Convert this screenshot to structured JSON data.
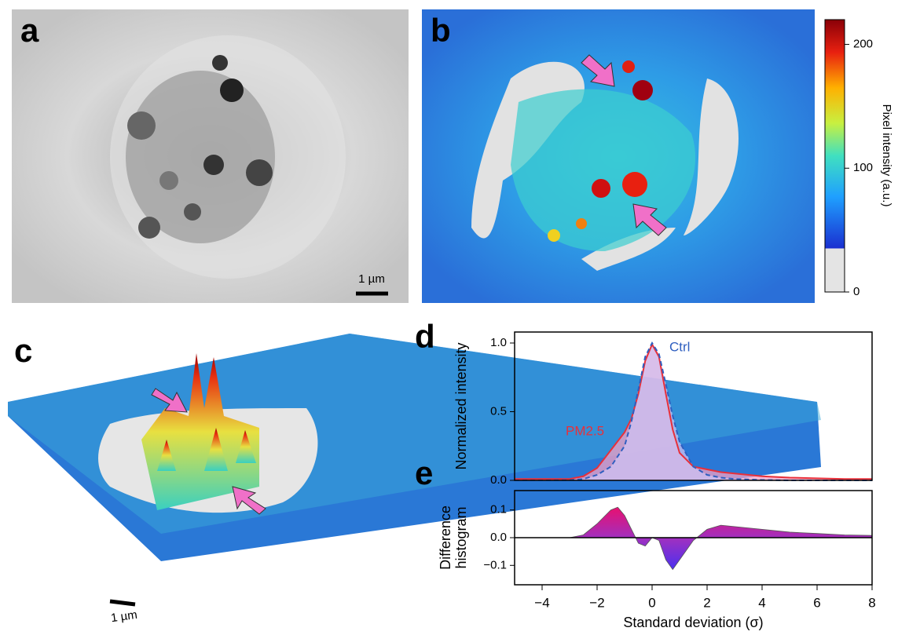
{
  "panel_labels": [
    "a",
    "b",
    "c",
    "d",
    "e"
  ],
  "scale_bars": [
    "1 µm",
    "1 µm"
  ],
  "colorbar": {
    "label": "Pixel intensity (a.u.)",
    "lim": [
      0,
      220
    ],
    "ticks": [
      0,
      100,
      200
    ]
  },
  "chart_data": [
    {
      "type": "line",
      "ylabel": "Normalized intensity",
      "x": [
        -5,
        -4,
        -3,
        -2.5,
        -2,
        -1.5,
        -1,
        -0.75,
        -0.5,
        -0.25,
        0,
        0.25,
        0.5,
        0.75,
        1,
        1.5,
        2,
        2.5,
        3,
        4,
        5,
        6,
        7,
        8
      ],
      "xlim": [
        -5,
        8
      ],
      "ylim": [
        0,
        1.08
      ],
      "yticks": [
        {
          "value": 0,
          "label": "0.0"
        },
        {
          "value": 0.5,
          "label": "0.5"
        },
        {
          "value": 1,
          "label": "1.0"
        }
      ],
      "series": [
        {
          "name": "PM2.5",
          "color": "#e8303a",
          "fill": "#f3a0c4",
          "dashed": false,
          "values": [
            0.01,
            0.01,
            0.01,
            0.03,
            0.09,
            0.22,
            0.35,
            0.45,
            0.63,
            0.87,
            0.99,
            0.9,
            0.63,
            0.37,
            0.2,
            0.1,
            0.08,
            0.06,
            0.05,
            0.03,
            0.02,
            0.015,
            0.01,
            0.01
          ]
        },
        {
          "name": "Ctrl",
          "color": "#2f5fc0",
          "fill": "#cfc2f2",
          "dashed": true,
          "values": [
            0,
            0,
            0.002,
            0.01,
            0.04,
            0.1,
            0.25,
            0.43,
            0.66,
            0.9,
            1.0,
            0.92,
            0.7,
            0.47,
            0.28,
            0.1,
            0.04,
            0.02,
            0.01,
            0.003,
            0,
            0,
            0,
            0
          ]
        }
      ]
    },
    {
      "type": "area",
      "ylabel": [
        "Difference",
        "histogram"
      ],
      "xlabel": "Standard deviation (σ)",
      "x": [
        -5,
        -4,
        -3,
        -2.5,
        -2,
        -1.5,
        -1.25,
        -1,
        -0.75,
        -0.5,
        -0.25,
        0,
        0.25,
        0.5,
        0.75,
        1,
        1.5,
        2,
        2.5,
        3,
        4,
        5,
        6,
        7,
        8
      ],
      "xlim": [
        -5,
        8
      ],
      "xticks": [
        {
          "value": -4,
          "label": "−4"
        },
        {
          "value": -2,
          "label": "−2"
        },
        0,
        2,
        4,
        6,
        8
      ],
      "ylim": [
        -0.17,
        0.17
      ],
      "yticks": [
        {
          "value": -0.1,
          "label": "−0.1"
        },
        {
          "value": 0,
          "label": "0.0"
        },
        {
          "value": 0.1,
          "label": "0.1"
        }
      ],
      "values": [
        0,
        0,
        0,
        0.01,
        0.05,
        0.1,
        0.11,
        0.08,
        0.03,
        -0.02,
        -0.03,
        0,
        -0.01,
        -0.08,
        -0.115,
        -0.08,
        -0.01,
        0.03,
        0.045,
        0.04,
        0.03,
        0.02,
        0.015,
        0.01,
        0.008
      ]
    }
  ]
}
